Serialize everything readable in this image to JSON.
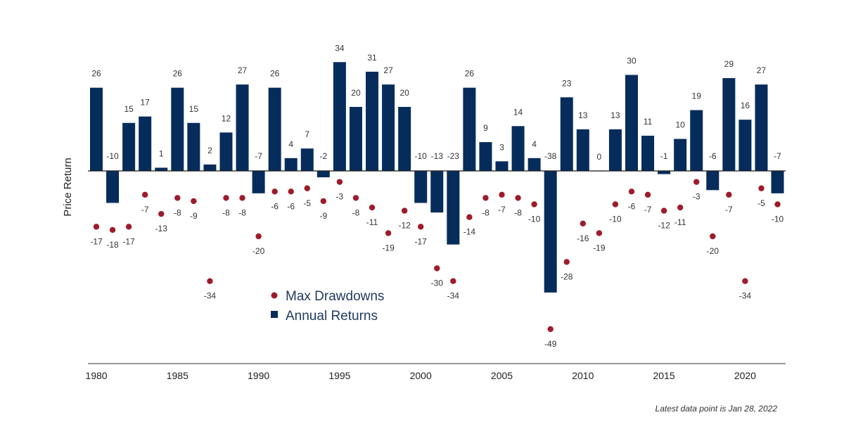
{
  "chart_data": {
    "type": "bar",
    "ylabel": "Price Return",
    "footnote": "Latest data point is Jan 28, 2022",
    "colors": {
      "bars": "#062c5c",
      "dots": "#9e1b2b"
    },
    "x_ticks": [
      "1980",
      "1985",
      "1990",
      "1995",
      "2000",
      "2005",
      "2010",
      "2015",
      "2020"
    ],
    "legend": {
      "dots": "Max Drawdowns",
      "bars": "Annual Returns",
      "position": "center-bottom"
    },
    "categories": [
      "1980",
      "1981",
      "1982",
      "1983",
      "1984",
      "1985",
      "1986",
      "1987",
      "1988",
      "1989",
      "1990",
      "1991",
      "1992",
      "1993",
      "1994",
      "1995",
      "1996",
      "1997",
      "1998",
      "1999",
      "2000",
      "2001",
      "2002",
      "2003",
      "2004",
      "2005",
      "2006",
      "2007",
      "2008",
      "2009",
      "2010",
      "2011",
      "2012",
      "2013",
      "2014",
      "2015",
      "2016",
      "2017",
      "2018",
      "2019",
      "2020",
      "2021",
      "2022"
    ],
    "series": [
      {
        "name": "Annual Returns",
        "type": "bar",
        "values": [
          26,
          -10,
          15,
          17,
          1,
          26,
          15,
          2,
          12,
          27,
          -7,
          26,
          4,
          7,
          -2,
          34,
          20,
          31,
          27,
          20,
          -10,
          -13,
          -23,
          26,
          9,
          3,
          14,
          4,
          -38,
          23,
          13,
          0,
          13,
          30,
          11,
          -1,
          10,
          19,
          -6,
          29,
          16,
          27,
          -7
        ]
      },
      {
        "name": "Max Drawdowns",
        "type": "scatter",
        "values": [
          -17,
          -18,
          -17,
          -7,
          -13,
          -8,
          -9,
          -34,
          -8,
          -8,
          -20,
          -6,
          -6,
          -5,
          -9,
          -3,
          -8,
          -11,
          -19,
          -12,
          -17,
          -30,
          -34,
          -14,
          -8,
          -7,
          -8,
          -10,
          -49,
          -28,
          -16,
          -19,
          -10,
          -6,
          -7,
          -12,
          -11,
          -3,
          -20,
          -7,
          -34,
          -5,
          -10
        ]
      }
    ],
    "ylim": [
      -60,
      40
    ],
    "grid": false
  }
}
